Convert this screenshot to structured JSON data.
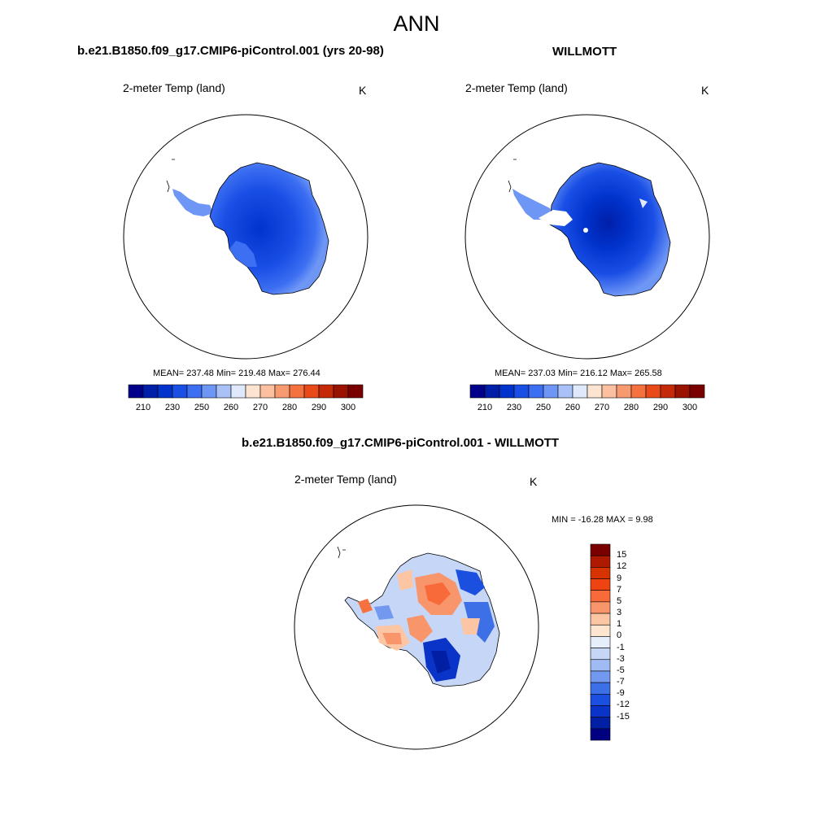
{
  "figure": {
    "title": "ANN",
    "panels": [
      {
        "case_title": "b.e21.B1850.f09_g17.CMIP6-piControl.001 (yrs 20-98)",
        "variable_label": "2-meter Temp (land)",
        "units": "K",
        "stats": "MEAN= 237.48  Min= 219.48  Max= 276.44"
      },
      {
        "case_title": "WILLMOTT",
        "variable_label": "2-meter Temp (land)",
        "units": "K",
        "stats": "MEAN= 237.03  Min= 216.12  Max= 265.58"
      },
      {
        "case_title": "b.e21.B1850.f09_g17.CMIP6-piControl.001 - WILLMOTT",
        "variable_label": "2-meter Temp (land)",
        "units": "K",
        "stats": "MIN = -16.28 MAX =   9.98"
      }
    ],
    "abs_colorbar": {
      "colors": [
        "#00008b",
        "#001fa9",
        "#0033cc",
        "#1a4fe6",
        "#3d6ff2",
        "#6e96f5",
        "#a9c1f7",
        "#dfe9fb",
        "#fde4d0",
        "#fcc0a0",
        "#f89a70",
        "#f5713f",
        "#e84a1a",
        "#c42a08",
        "#9a1200",
        "#7a0000"
      ],
      "tick_labels": [
        "210",
        "230",
        "250",
        "260",
        "270",
        "280",
        "290",
        "300"
      ]
    },
    "diff_colorbar": {
      "colors": [
        "#7a0000",
        "#ad1a00",
        "#d63300",
        "#ee4411",
        "#f86a3a",
        "#f9956b",
        "#fcc6a4",
        "#fde5d0",
        "#e6eefb",
        "#c5d6f7",
        "#a0bbf4",
        "#7299ef",
        "#3d6fe6",
        "#1a4fe0",
        "#0a33c7",
        "#001fa2",
        "#000080"
      ],
      "tick_labels": [
        "15",
        "12",
        "9",
        "7",
        "5",
        "3",
        "1",
        "0",
        "-1",
        "-3",
        "-5",
        "-7",
        "-9",
        "-12",
        "-15"
      ]
    },
    "map_colors": {
      "coast": "#000000",
      "circle": "#000000"
    }
  }
}
